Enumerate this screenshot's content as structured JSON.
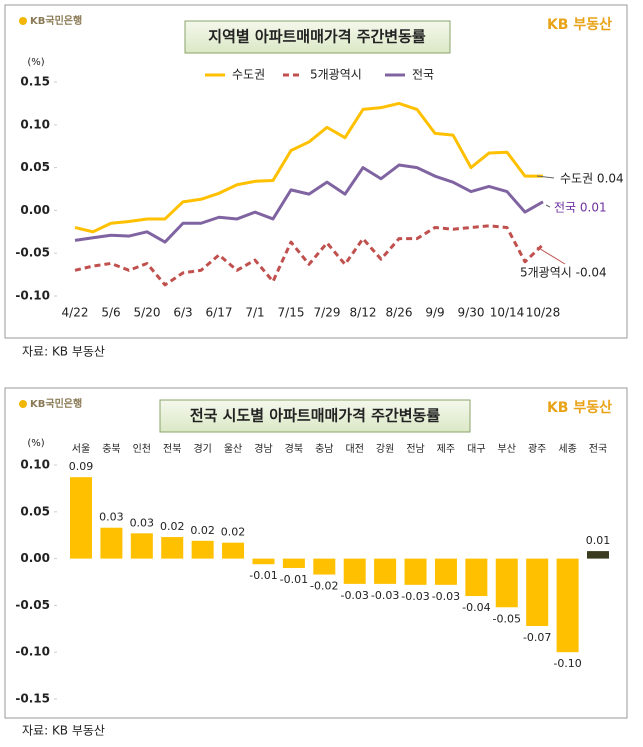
{
  "chart_data": [
    {
      "type": "line",
      "title": "지역별 아파트매매가격 주간변동률",
      "logo_left": "KB국민은행",
      "logo_right": "KB 부동산",
      "y_label": "(%)",
      "categories": [
        "4/22",
        null,
        "5/6",
        null,
        "5/20",
        null,
        "6/3",
        null,
        "6/17",
        null,
        "7/1",
        null,
        "7/15",
        null,
        "7/29",
        null,
        "8/12",
        null,
        "8/26",
        null,
        "9/9",
        null,
        "9/30",
        null,
        "10/14",
        null,
        "10/28"
      ],
      "series": [
        {
          "name": "수도권",
          "color": "#FFC000",
          "values": [
            -0.02,
            -0.025,
            -0.015,
            -0.013,
            -0.01,
            -0.01,
            0.01,
            0.013,
            0.02,
            0.03,
            0.034,
            0.035,
            0.07,
            0.08,
            0.097,
            0.085,
            0.118,
            0.12,
            0.125,
            0.118,
            0.09,
            0.088,
            0.05,
            0.067,
            0.068,
            0.04,
            0.04
          ]
        },
        {
          "name": "5개광역시",
          "color": "#C0504D",
          "dash": true,
          "values": [
            -0.07,
            -0.065,
            -0.062,
            -0.07,
            -0.062,
            -0.087,
            -0.073,
            -0.07,
            -0.052,
            -0.07,
            -0.058,
            -0.083,
            -0.037,
            -0.063,
            -0.038,
            -0.063,
            -0.033,
            -0.057,
            -0.033,
            -0.033,
            -0.02,
            -0.022,
            -0.02,
            -0.018,
            -0.02,
            -0.06,
            -0.04
          ]
        },
        {
          "name": "전국",
          "color": "#8064A2",
          "values": [
            -0.035,
            -0.032,
            -0.029,
            -0.03,
            -0.025,
            -0.037,
            -0.015,
            -0.015,
            -0.008,
            -0.01,
            -0.002,
            -0.01,
            0.024,
            0.019,
            0.033,
            0.019,
            0.05,
            0.037,
            0.053,
            0.05,
            0.04,
            0.033,
            0.022,
            0.028,
            0.022,
            -0.002,
            0.01
          ]
        }
      ],
      "annotations": [
        {
          "text": "수도권 0.04"
        },
        {
          "text": "전국 0.01",
          "color": "#7030A0"
        },
        {
          "text": "5개광역시 -0.04"
        }
      ],
      "ylim": [
        -0.1,
        0.15
      ],
      "yticks": [
        0.15,
        {
          "value": 0.1,
          "label": "0.10"
        },
        0.05,
        {
          "value": 0,
          "label": "0.00"
        },
        -0.05,
        {
          "value": -0.1,
          "label": "-0.10"
        }
      ],
      "source": "자료: KB 부동산"
    },
    {
      "type": "bar",
      "title": "전국 시도별 아파트매매가격 주간변동률",
      "logo_left": "KB국민은행",
      "logo_right": "KB 부동산",
      "y_label": "(%)",
      "categories": [
        "서울",
        "충북",
        "인천",
        "전북",
        "경기",
        "울산",
        "경남",
        "경북",
        "충남",
        "대전",
        "강원",
        "전남",
        "제주",
        "대구",
        "부산",
        "광주",
        "세종",
        "전국"
      ],
      "values": [
        0.087,
        0.033,
        0.027,
        0.023,
        0.019,
        0.017,
        -0.006,
        -0.01,
        -0.017,
        -0.027,
        -0.027,
        -0.028,
        -0.028,
        -0.04,
        -0.052,
        -0.072,
        -0.1,
        0.008
      ],
      "value_labels": [
        "0.09",
        "0.03",
        "0.03",
        "0.02",
        "0.02",
        "0.02",
        "-0.01",
        "-0.01",
        "-0.02",
        "-0.03",
        "-0.03",
        "-0.03",
        "-0.03",
        "-0.04",
        "-0.05",
        "-0.07",
        "-0.10",
        "0.01"
      ],
      "colors": [
        "#FFC000",
        "#FFC000",
        "#FFC000",
        "#FFC000",
        "#FFC000",
        "#FFC000",
        "#FFC000",
        "#FFC000",
        "#FFC000",
        "#FFC000",
        "#FFC000",
        "#FFC000",
        "#FFC000",
        "#FFC000",
        "#FFC000",
        "#FFC000",
        "#FFC000",
        "#3B3B1F"
      ],
      "ylim": [
        -0.15,
        0.1
      ],
      "yticks": [
        {
          "value": 0.1,
          "label": "0.10"
        },
        0.05,
        {
          "value": 0,
          "label": "0.00"
        },
        -0.05,
        {
          "value": -0.1,
          "label": "-0.10"
        },
        -0.15
      ],
      "source": "자료: KB 부동산"
    }
  ]
}
